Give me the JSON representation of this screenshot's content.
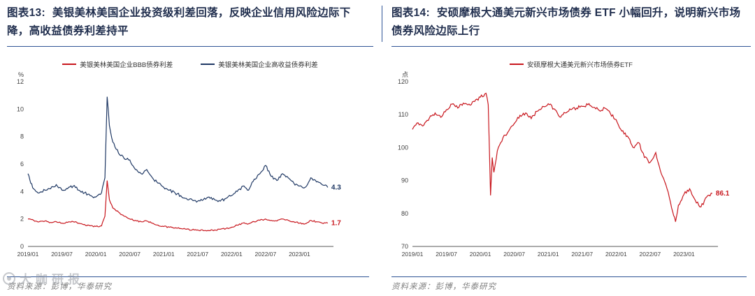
{
  "colors": {
    "accent_rule_blue": "#2e5395",
    "title_text": "#1f2d4d",
    "source_text": "#808080",
    "line_red": "#c8161d",
    "line_navy": "#1f3864",
    "axis_text": "#404040"
  },
  "watermark": {
    "text": "大咖研报"
  },
  "chart_data": [
    {
      "type": "line",
      "figure_label": "图表13:",
      "title": "美银美林美国企业投资级利差回落，反映企业信用风险边际下降，高收益债券利差持平",
      "source": "资料来源：彭博，华泰研究",
      "unit_label": "%",
      "ylim": [
        0,
        12
      ],
      "yticks": [
        0,
        2,
        4,
        6,
        8,
        10,
        12
      ],
      "xlim": [
        0,
        54
      ],
      "xtick_pos": [
        0,
        6,
        12,
        18,
        24,
        30,
        36,
        42,
        48
      ],
      "xtick_labels": [
        "2019/01",
        "2019/07",
        "2020/01",
        "2020/07",
        "2021/01",
        "2021/07",
        "2022/01",
        "2022/07",
        "2023/01"
      ],
      "grid": false,
      "legend_position": "top",
      "series": [
        {
          "name": "美银美林美国企业BBB债券利差",
          "color": "#c8161d",
          "noise": 0.05,
          "end_label": "1.7",
          "points": [
            [
              0,
              2.0
            ],
            [
              1,
              1.9
            ],
            [
              2,
              1.8
            ],
            [
              3,
              1.85
            ],
            [
              4,
              1.75
            ],
            [
              5,
              1.8
            ],
            [
              6,
              1.7
            ],
            [
              7,
              1.75
            ],
            [
              8,
              1.8
            ],
            [
              9,
              1.7
            ],
            [
              10,
              1.6
            ],
            [
              11,
              1.5
            ],
            [
              12,
              1.45
            ],
            [
              13,
              1.5
            ],
            [
              13.6,
              2.2
            ],
            [
              14,
              4.8
            ],
            [
              14.4,
              3.4
            ],
            [
              15,
              2.8
            ],
            [
              16,
              2.5
            ],
            [
              17,
              2.2
            ],
            [
              18,
              2.0
            ],
            [
              19,
              1.9
            ],
            [
              20,
              1.8
            ],
            [
              21,
              1.85
            ],
            [
              22,
              1.7
            ],
            [
              23,
              1.55
            ],
            [
              24,
              1.45
            ],
            [
              25,
              1.4
            ],
            [
              26,
              1.35
            ],
            [
              27,
              1.3
            ],
            [
              28,
              1.25
            ],
            [
              29,
              1.2
            ],
            [
              30,
              1.2
            ],
            [
              31,
              1.15
            ],
            [
              32,
              1.15
            ],
            [
              33,
              1.2
            ],
            [
              34,
              1.25
            ],
            [
              35,
              1.3
            ],
            [
              36,
              1.4
            ],
            [
              37,
              1.55
            ],
            [
              38,
              1.7
            ],
            [
              39,
              1.65
            ],
            [
              40,
              1.8
            ],
            [
              41,
              1.9
            ],
            [
              42,
              2.0
            ],
            [
              43,
              1.9
            ],
            [
              44,
              1.85
            ],
            [
              45,
              2.0
            ],
            [
              46,
              1.9
            ],
            [
              47,
              1.8
            ],
            [
              48,
              1.7
            ],
            [
              49,
              1.65
            ],
            [
              50,
              1.9
            ],
            [
              51,
              1.8
            ],
            [
              52,
              1.7
            ],
            [
              53,
              1.7
            ]
          ]
        },
        {
          "name": "美银美林美国企业高收益债券利差",
          "color": "#1f3864",
          "noise": 0.1,
          "end_label": "4.3",
          "points": [
            [
              0,
              5.3
            ],
            [
              0.5,
              4.6
            ],
            [
              1,
              4.2
            ],
            [
              2,
              3.9
            ],
            [
              3,
              4.1
            ],
            [
              4,
              4.2
            ],
            [
              5,
              4.5
            ],
            [
              6,
              4.1
            ],
            [
              7,
              4.2
            ],
            [
              8,
              4.4
            ],
            [
              9,
              4.1
            ],
            [
              10,
              3.9
            ],
            [
              11,
              3.7
            ],
            [
              12,
              3.6
            ],
            [
              13,
              3.9
            ],
            [
              13.6,
              5.0
            ],
            [
              14,
              10.9
            ],
            [
              14.4,
              8.8
            ],
            [
              15,
              7.6
            ],
            [
              16,
              6.8
            ],
            [
              17,
              6.4
            ],
            [
              18,
              6.3
            ],
            [
              19,
              5.6
            ],
            [
              20,
              5.3
            ],
            [
              21,
              5.6
            ],
            [
              22,
              5.0
            ],
            [
              23,
              4.6
            ],
            [
              24,
              4.3
            ],
            [
              25,
              4.1
            ],
            [
              26,
              3.9
            ],
            [
              27,
              3.7
            ],
            [
              28,
              3.5
            ],
            [
              29,
              3.4
            ],
            [
              30,
              3.3
            ],
            [
              31,
              3.4
            ],
            [
              32,
              3.6
            ],
            [
              33,
              3.4
            ],
            [
              34,
              3.3
            ],
            [
              35,
              3.5
            ],
            [
              36,
              3.7
            ],
            [
              37,
              4.0
            ],
            [
              38,
              4.4
            ],
            [
              39,
              4.1
            ],
            [
              40,
              4.9
            ],
            [
              41,
              5.3
            ],
            [
              42,
              5.9
            ],
            [
              43,
              5.1
            ],
            [
              44,
              4.8
            ],
            [
              45,
              5.3
            ],
            [
              46,
              5.0
            ],
            [
              47,
              4.6
            ],
            [
              48,
              4.4
            ],
            [
              49,
              4.3
            ],
            [
              50,
              5.0
            ],
            [
              51,
              4.7
            ],
            [
              52,
              4.5
            ],
            [
              53,
              4.3
            ]
          ]
        }
      ]
    },
    {
      "type": "line",
      "figure_label": "图表14:",
      "title": "安硕摩根大通美元新兴市场债券 ETF 小幅回升，说明新兴市场债券风险边际上行",
      "source": "资料来源：彭博，华泰研究",
      "unit_label": "点",
      "ylim": [
        70,
        120
      ],
      "yticks": [
        70,
        80,
        90,
        100,
        110,
        120
      ],
      "xlim": [
        0,
        54
      ],
      "xtick_pos": [
        0,
        6,
        12,
        18,
        24,
        30,
        36,
        42,
        48
      ],
      "xtick_labels": [
        "2019/01",
        "2019/07",
        "2020/01",
        "2020/07",
        "2021/01",
        "2021/07",
        "2022/01",
        "2022/07",
        "2023/01"
      ],
      "grid": false,
      "legend_position": "top",
      "series": [
        {
          "name": "安硕摩根大通美元新兴市场债券ETF",
          "color": "#c8161d",
          "noise": 0.5,
          "end_label": "86.1",
          "points": [
            [
              0,
              105.5
            ],
            [
              1,
              107.5
            ],
            [
              2,
              106.8
            ],
            [
              3,
              109.0
            ],
            [
              4,
              110.5
            ],
            [
              5,
              109.2
            ],
            [
              6,
              111.5
            ],
            [
              7,
              113.2
            ],
            [
              8,
              112.0
            ],
            [
              9,
              113.5
            ],
            [
              10,
              113.2
            ],
            [
              11,
              114.0
            ],
            [
              12,
              115.3
            ],
            [
              13,
              116.5
            ],
            [
              13.4,
              113.0
            ],
            [
              13.8,
              85.5
            ],
            [
              14.1,
              97.0
            ],
            [
              14.4,
              92.5
            ],
            [
              15,
              99.0
            ],
            [
              16,
              103.0
            ],
            [
              17,
              105.0
            ],
            [
              18,
              107.3
            ],
            [
              19,
              109.8
            ],
            [
              20,
              110.5
            ],
            [
              21,
              108.8
            ],
            [
              22,
              111.0
            ],
            [
              23,
              112.5
            ],
            [
              24,
              113.3
            ],
            [
              25,
              111.8
            ],
            [
              26,
              109.3
            ],
            [
              27,
              110.5
            ],
            [
              28,
              111.5
            ],
            [
              29,
              112.0
            ],
            [
              30,
              112.5
            ],
            [
              31,
              113.0
            ],
            [
              32,
              112.2
            ],
            [
              33,
              111.3
            ],
            [
              34,
              112.0
            ],
            [
              35,
              110.3
            ],
            [
              36,
              108.5
            ],
            [
              37,
              105.0
            ],
            [
              38,
              103.5
            ],
            [
              39,
              100.0
            ],
            [
              40,
              101.5
            ],
            [
              41,
              97.0
            ],
            [
              42,
              95.5
            ],
            [
              43,
              98.5
            ],
            [
              44,
              92.0
            ],
            [
              45,
              87.5
            ],
            [
              45.6,
              83.5
            ],
            [
              46,
              80.5
            ],
            [
              46.5,
              77.5
            ],
            [
              47,
              82.5
            ],
            [
              48,
              85.8
            ],
            [
              49,
              87.5
            ],
            [
              50,
              84.0
            ],
            [
              51,
              82.0
            ],
            [
              52,
              85.0
            ],
            [
              53,
              86.1
            ]
          ]
        }
      ]
    }
  ]
}
